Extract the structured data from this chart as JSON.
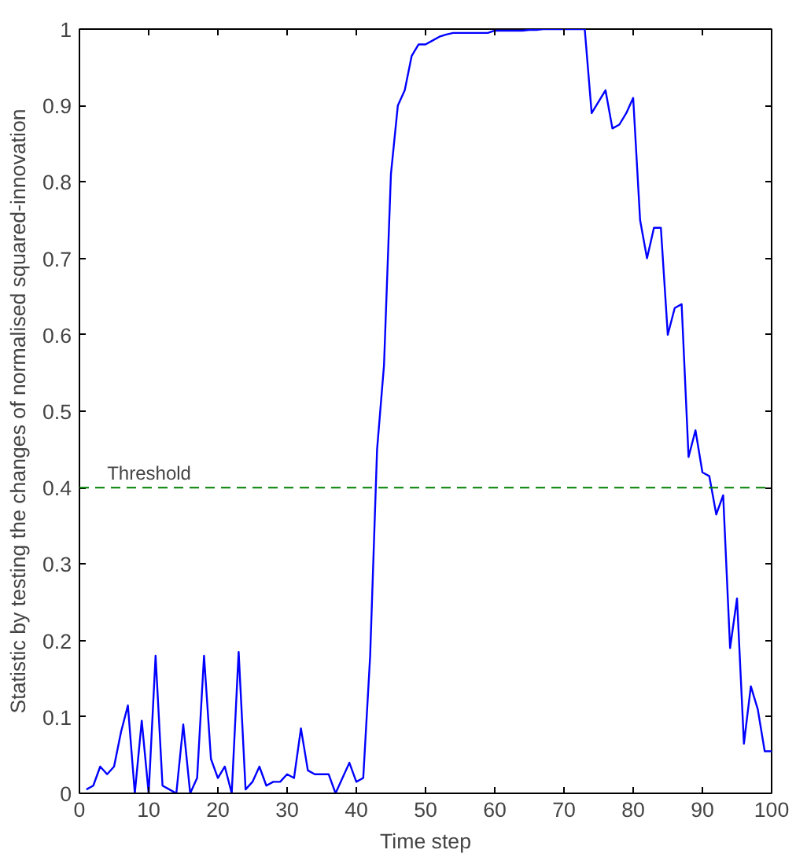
{
  "chart_data": {
    "type": "line",
    "xlabel": "Time step",
    "ylabel": "Statistic by testing the changes of normalised squared-innovation",
    "xlim": [
      0,
      100
    ],
    "ylim": [
      0,
      1
    ],
    "xticks": [
      0,
      10,
      20,
      30,
      40,
      50,
      60,
      70,
      80,
      90,
      100
    ],
    "yticks": [
      0,
      0.1,
      0.2,
      0.3,
      0.4,
      0.5,
      0.6,
      0.7,
      0.8,
      0.9,
      1
    ],
    "grid": false,
    "marker": "none",
    "line_style": "solid",
    "ref_lines": [
      {
        "axis": "y",
        "value": 0.4,
        "label": "Threshold",
        "color": "#008000",
        "line_style": "dashed"
      }
    ],
    "series": [
      {
        "color": "#0000ff",
        "x": [
          1,
          2,
          3,
          4,
          5,
          6,
          7,
          8,
          9,
          10,
          11,
          12,
          13,
          14,
          15,
          16,
          17,
          18,
          19,
          20,
          21,
          22,
          23,
          24,
          25,
          26,
          27,
          28,
          29,
          30,
          31,
          32,
          33,
          34,
          35,
          36,
          37,
          38,
          39,
          40,
          41,
          42,
          43,
          44,
          45,
          46,
          47,
          48,
          49,
          50,
          51,
          52,
          53,
          54,
          55,
          56,
          57,
          58,
          59,
          60,
          61,
          62,
          63,
          64,
          65,
          66,
          67,
          68,
          69,
          70,
          71,
          72,
          73,
          74,
          75,
          76,
          77,
          78,
          79,
          80,
          81,
          82,
          83,
          84,
          85,
          86,
          87,
          88,
          89,
          90,
          91,
          92,
          93,
          94,
          95,
          96,
          97,
          98,
          99,
          100
        ],
        "values": [
          0.005,
          0.01,
          0.035,
          0.025,
          0.035,
          0.08,
          0.115,
          0,
          0.095,
          0,
          0.18,
          0.01,
          0.005,
          0,
          0.09,
          0,
          0.02,
          0.18,
          0.045,
          0.02,
          0.035,
          0,
          0.185,
          0.005,
          0.015,
          0.035,
          0.01,
          0.015,
          0.015,
          0.025,
          0.02,
          0.085,
          0.03,
          0.025,
          0.025,
          0.025,
          0,
          0.02,
          0.04,
          0.015,
          0.02,
          0.18,
          0.45,
          0.56,
          0.81,
          0.9,
          0.92,
          0.965,
          0.98,
          0.98,
          0.985,
          0.99,
          0.993,
          0.995,
          0.995,
          0.995,
          0.995,
          0.995,
          0.995,
          0.998,
          0.998,
          0.998,
          0.998,
          0.998,
          0.999,
          0.999,
          1,
          1,
          1,
          1,
          1,
          1,
          1,
          0.89,
          0.905,
          0.92,
          0.87,
          0.875,
          0.89,
          0.91,
          0.75,
          0.7,
          0.74,
          0.74,
          0.6,
          0.635,
          0.64,
          0.44,
          0.475,
          0.42,
          0.415,
          0.365,
          0.39,
          0.19,
          0.255,
          0.065,
          0.14,
          0.11,
          0.055,
          0.055
        ]
      }
    ]
  }
}
